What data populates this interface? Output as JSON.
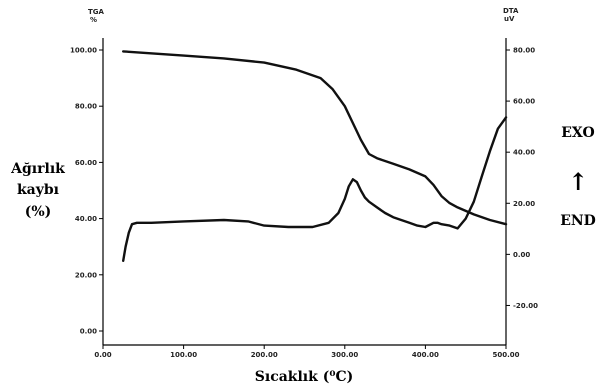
{
  "chart_data": {
    "type": "line",
    "xlabel": "Sıcaklık (⁰C)",
    "x_ticks": [
      "0.00",
      "100.00",
      "200.00",
      "300.00",
      "400.00",
      "500.00"
    ],
    "xlim": [
      0,
      500
    ],
    "left_axis": {
      "header": "TGA",
      "unit": "%",
      "label_lines": [
        "Ağırlık",
        "kaybı",
        "(%)"
      ],
      "ylim": [
        0,
        100
      ],
      "ticks": [
        "0.00",
        "20.00",
        "40.00",
        "60.00",
        "80.00",
        "100.00"
      ]
    },
    "right_axis": {
      "header": "DTA",
      "unit": "uV",
      "ylim": [
        -30,
        80
      ],
      "ticks": [
        "-20.00",
        "0.00",
        "20.00",
        "40.00",
        "60.00",
        "80.00"
      ]
    },
    "right_annotations": {
      "top": "EXO",
      "arrow": "↑",
      "bottom": "END"
    },
    "series": [
      {
        "axis": "left",
        "x": [
          25,
          50,
          100,
          150,
          200,
          240,
          270,
          285,
          300,
          310,
          320,
          330,
          340,
          360,
          380,
          400,
          410,
          420,
          430,
          440,
          460,
          480,
          500
        ],
        "y": [
          99.5,
          99,
          98,
          97,
          95.5,
          93,
          90,
          86,
          80,
          74,
          68,
          63,
          61.5,
          59.5,
          57.5,
          55,
          52,
          48,
          45.5,
          44,
          41.5,
          39.5,
          38
        ]
      },
      {
        "axis": "left",
        "x": [
          25,
          28,
          32,
          36,
          42,
          60,
          100,
          150,
          180,
          200,
          230,
          260,
          280,
          292,
          300,
          305,
          310,
          315,
          320,
          325,
          330,
          340,
          350,
          360,
          370,
          380,
          390,
          400,
          410,
          415,
          420,
          430,
          440,
          450,
          460,
          470,
          480,
          490,
          500
        ],
        "y": [
          25,
          30,
          35,
          38,
          38.5,
          38.5,
          39,
          39.5,
          39,
          37.5,
          37,
          37,
          38.5,
          42,
          47,
          51.5,
          54,
          53,
          50,
          47.5,
          46,
          44,
          42,
          40.5,
          39.5,
          38.5,
          37.5,
          37,
          38.5,
          38.5,
          38,
          37.5,
          36.5,
          40,
          46,
          55,
          64,
          72,
          76
        ]
      }
    ]
  }
}
